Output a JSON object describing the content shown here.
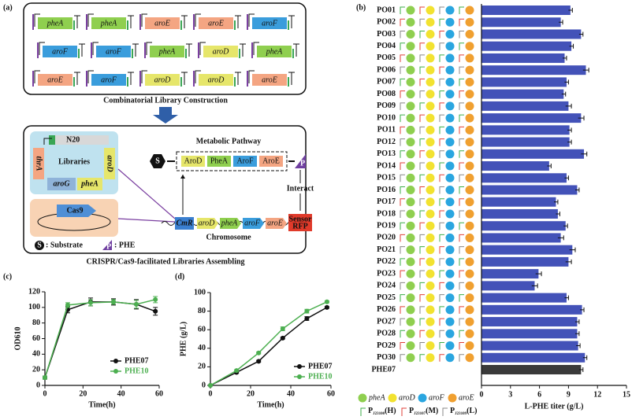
{
  "panel_labels": [
    "(a)",
    "(b)",
    "(c)",
    "(d)"
  ],
  "diagram": {
    "gene_colors": {
      "pheA": "#8fcf4f",
      "aroE": "#f4a582",
      "aroF": "#3a9ddc",
      "aroD": "#e6e66a"
    },
    "library_genes": [
      [
        "pheA",
        "pheA",
        "aroE",
        "aroE",
        "aroF"
      ],
      [
        "aroF",
        "aroF",
        "pheA",
        "aroD",
        "pheA"
      ],
      [
        "aroE",
        "aroF",
        "aroD",
        "aroD",
        "aroE"
      ]
    ],
    "library_caption": "Combinatorial Library Construction",
    "libraries": {
      "n20": "N20",
      "thrA": "thrA",
      "aroD": "aroD",
      "title": "Libraries",
      "aroG": "aroG",
      "pheA": "pheA"
    },
    "cas9": "Cas9",
    "pathway": {
      "title": "Metabolic Pathway",
      "enzymes": [
        "AroD",
        "PheA",
        "AroF",
        "AroE"
      ],
      "substrate": "S",
      "product": "P",
      "interact": "Interact"
    },
    "chromosome": {
      "marker": "CmR",
      "genes": [
        "aroD",
        "pheA",
        "aroF",
        "aroE"
      ],
      "sensor": [
        "Sensor",
        "RFP"
      ],
      "title": "Chromosome"
    },
    "legend": {
      "s": "S",
      "s_label": ": Substrate",
      "p": "P",
      "p_label": ": PHE"
    },
    "caption": "CRISPR/Cas9-facilitated Libraries Assembling"
  },
  "chart_data": [
    {
      "type": "hbar",
      "categories": [
        "PO01",
        "PO02",
        "PO03",
        "PO04",
        "PO05",
        "PO06",
        "PO07",
        "PO08",
        "PO09",
        "PO10",
        "PO11",
        "PO12",
        "PO13",
        "PO14",
        "PO15",
        "PO16",
        "PO17",
        "PO18",
        "PO19",
        "PO20",
        "PO21",
        "PO22",
        "PO23",
        "PO24",
        "PO25",
        "PO26",
        "PO27",
        "PO28",
        "PO29",
        "PO30",
        "PHE07"
      ],
      "values": [
        9.2,
        8.2,
        10.3,
        9.3,
        8.6,
        10.8,
        8.8,
        8.5,
        9.0,
        10.3,
        9.1,
        9.1,
        10.6,
        7.0,
        8.8,
        9.9,
        7.7,
        7.9,
        8.7,
        8.2,
        9.4,
        9.0,
        5.9,
        5.5,
        8.8,
        10.4,
        9.9,
        9.9,
        10.0,
        10.7,
        10.3
      ],
      "errors": [
        0.2,
        0.2,
        0.2,
        0.2,
        0.2,
        0.3,
        0.2,
        0.2,
        0.3,
        0.3,
        0.2,
        0.2,
        0.3,
        0.2,
        0.2,
        0.2,
        0.2,
        0.2,
        0.2,
        0.3,
        0.3,
        0.3,
        0.3,
        0.3,
        0.2,
        0.2,
        0.2,
        0.2,
        0.2,
        0.2,
        0.2
      ],
      "colors": [
        "#4352b8",
        "#4352b8",
        "#4352b8",
        "#4352b8",
        "#4352b8",
        "#4352b8",
        "#4352b8",
        "#4352b8",
        "#4352b8",
        "#4352b8",
        "#4352b8",
        "#4352b8",
        "#4352b8",
        "#4352b8",
        "#4352b8",
        "#4352b8",
        "#4352b8",
        "#4352b8",
        "#4352b8",
        "#4352b8",
        "#4352b8",
        "#4352b8",
        "#4352b8",
        "#4352b8",
        "#4352b8",
        "#4352b8",
        "#4352b8",
        "#4352b8",
        "#4352b8",
        "#4352b8",
        "#3a3a3a"
      ],
      "xlim": [
        0,
        15
      ],
      "xticks": [
        0,
        3,
        6,
        9,
        12,
        15
      ],
      "xlabel": "L-PHE titer (g/L)",
      "gene_legend": [
        {
          "name": "pheA",
          "color": "#8fcf4f"
        },
        {
          "name": "aroD",
          "color": "#f2e230"
        },
        {
          "name": "aroF",
          "color": "#2aa6e0"
        },
        {
          "name": "aroE",
          "color": "#f0a030"
        }
      ],
      "promoter_legend": [
        {
          "label": "P",
          "sub": "J23100",
          "suffix": "(H)",
          "color": "#3cae4a"
        },
        {
          "label": "P",
          "sub": "J23107",
          "suffix": "(M)",
          "color": "#e0403a"
        },
        {
          "label": "P",
          "sub": "J23109",
          "suffix": "(L)",
          "color": "#888888"
        }
      ]
    },
    {
      "type": "line",
      "xlabel": "Time(h)",
      "ylabel": "OD610",
      "xlim": [
        0,
        60
      ],
      "xticks": [
        0,
        20,
        40,
        60
      ],
      "ylim": [
        0,
        120
      ],
      "yticks": [
        0,
        20,
        40,
        60,
        80,
        100,
        120
      ],
      "series": [
        {
          "name": "PHE07",
          "color": "#111111",
          "x": [
            0,
            12,
            24,
            36,
            48,
            58
          ],
          "values": [
            10,
            97,
            107,
            107,
            104,
            95
          ],
          "errors": [
            2,
            4,
            5,
            4,
            6,
            5
          ]
        },
        {
          "name": "PHE10",
          "color": "#4caf50",
          "x": [
            0,
            12,
            24,
            36,
            48,
            58
          ],
          "values": [
            10,
            103,
            106,
            107,
            104,
            110
          ],
          "errors": [
            2,
            3,
            4,
            3,
            5,
            4
          ]
        }
      ]
    },
    {
      "type": "line",
      "xlabel": "Time(h)",
      "ylabel": "PHE (g/L)",
      "xlim": [
        0,
        60
      ],
      "xticks": [
        0,
        20,
        40,
        60
      ],
      "ylim": [
        0,
        100
      ],
      "yticks": [
        0,
        20,
        40,
        60,
        80,
        100
      ],
      "series": [
        {
          "name": "PHE07",
          "color": "#111111",
          "x": [
            0,
            13,
            24,
            36,
            48,
            58
          ],
          "values": [
            0,
            14,
            26,
            51,
            72,
            84
          ],
          "errors": [
            0,
            1,
            1,
            1,
            2,
            1
          ]
        },
        {
          "name": "PHE10",
          "color": "#4caf50",
          "x": [
            0,
            13,
            24,
            36,
            48,
            58
          ],
          "values": [
            0,
            16,
            35,
            61,
            80,
            90
          ],
          "errors": [
            0,
            1,
            1,
            2,
            2,
            1
          ]
        }
      ]
    }
  ]
}
